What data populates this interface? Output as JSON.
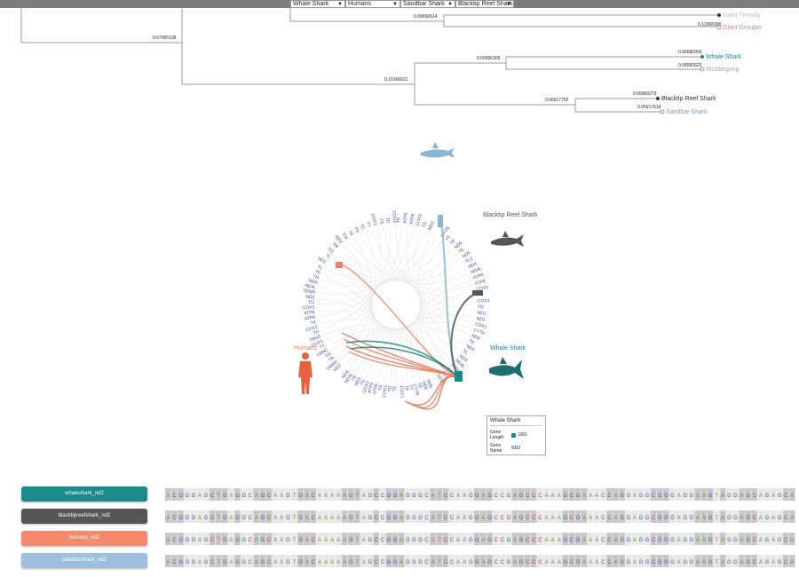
{
  "topbar": {
    "dropdowns": [
      "Whale Shark",
      "Humans",
      "Sandbar Shark",
      "Blacktip Reef Shark"
    ]
  },
  "tree": {
    "branch_labels": [
      "0.07005108",
      "0.06658614",
      "0.10166621",
      "0.00996305",
      "0.06617752",
      "0.06680993",
      "0.06582623",
      "0.05969279",
      "0.05917614",
      "0.12065990"
    ],
    "leaves": [
      {
        "name": "Giant Trevally",
        "color": "#bbbbbb"
      },
      {
        "name": "Giant Grouper",
        "color": "#c98a8a"
      },
      {
        "name": "Whale Shark",
        "color": "#1a8a8a"
      },
      {
        "name": "Wobbegong",
        "color": "#aaaaaa"
      },
      {
        "name": "Blacktip Reef Shark",
        "color": "#333333"
      },
      {
        "name": "Sandbar Shark",
        "color": "#6f9fd0"
      }
    ]
  },
  "chord": {
    "genes_left": [
      "ND2",
      "TRNW",
      "TA",
      "TN",
      "TRNC",
      "TY",
      "COX1",
      "TRNS",
      "TD",
      "COX2",
      "TK",
      "ATP8",
      "ATP6",
      "COX3",
      "TG",
      "ND3",
      "TRNR",
      "ND4L",
      "ND4",
      "TH",
      "TS",
      "TL"
    ],
    "genes_right": [
      "CYTB",
      "TT",
      "TP",
      "ND6",
      "TE",
      "ND5",
      "TL2",
      "ND4",
      "ND4L",
      "ATP6",
      "ATP8",
      "COX3",
      "TK",
      "COX2",
      "TD",
      "ND2",
      "ND1",
      "COX1",
      "CYTb",
      "ND6",
      "TE",
      "ND5",
      "TL",
      "ND4",
      "ND4L",
      "COX3",
      "COX1",
      "ND3",
      "ND2"
    ],
    "genes_top": [
      "ND1",
      "TI",
      "TQ",
      "TM",
      "ND2",
      "TW",
      "TA",
      "TN",
      "TC",
      "TY",
      "COX1",
      "TS",
      "TD",
      "COX2",
      "TK",
      "ATP8",
      "ATP6",
      "COX3",
      "TG",
      "ND3"
    ],
    "genes_bottom": [
      "ND5",
      "ND6",
      "TE",
      "CYTB",
      "TT",
      "TP",
      "COX1",
      "TS",
      "TD",
      "COX2",
      "TK",
      "ATP8",
      "ATP6",
      "COX3",
      "TG",
      "ND3",
      "TR",
      "ND4L",
      "ND4"
    ],
    "species_labels": {
      "blacktip": "Blacktip Reef Shark",
      "whale": "Whale Shark",
      "humans": "Humans"
    },
    "colors": {
      "whale": "#1a8a8a",
      "blacktip": "#555555",
      "humans": "#f08060",
      "sandbar": "#8ab6d6"
    }
  },
  "tooltip": {
    "title": "Whale Shark",
    "gene_length_label": "Gene Length",
    "gene_length_value": "1001",
    "gene_name_label": "Gene Name",
    "gene_name_value": "ND2"
  },
  "sequences": [
    {
      "label": "whaleshark_nd2",
      "color": "#1a8a8a",
      "seq": "ACGGGAGCTGAGGCAGCAAGTGACAAAAAGTAGCCGGAGGGCATCCAAGGAGCCGAGCCCAAAGCGAAACCAGGAGGCGGGAGGAAGTAGGAGCAGAGCA"
    },
    {
      "label": "blacktipreefshark_nd2",
      "color": "#555555",
      "seq": "ACGGGAGCTGAGGCAGCAAGTGACAAAAAGTAGCCGGAGGGCATCCAAGGAGCCGAGCCCAAAGCGAAACCAGGAGGCGGGAGGAAGTAGGAGCAGAGCA"
    },
    {
      "label": "humans_nd2",
      "color": "#f5896b",
      "seq": "ACGGGAGCTGAGGCAGCAAGTGACAAAAAGTAGCCGGAGGGCATCCAAGGAGCCGAGCCCAAAGCGAAACCAGGAGGCGGGAGGAAGTAGGAGCAGAGCA"
    },
    {
      "label": "sandbarshark_nd2",
      "color": "#9dbfe0",
      "seq": "ACGGGAGCTGAGGCAGCAAGTGACAAAAAGTAGCCGGAGGGCATCCAAGGAGCCGAGCCCAAAGCGAAACCAGGAGGCGGGAGGAAGTAGGAGCAGAGCA"
    }
  ]
}
